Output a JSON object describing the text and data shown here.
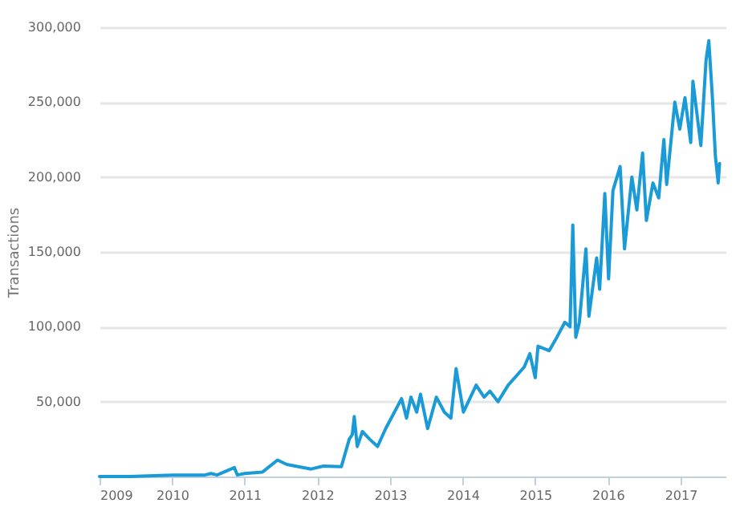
{
  "chart_data": {
    "type": "line",
    "ylabel": "Transactions",
    "xlim": [
      "2009-01-01",
      "2017-08-15"
    ],
    "ylim": [
      0,
      300000
    ],
    "xticks": [
      "2009",
      "2010",
      "2011",
      "2012",
      "2013",
      "2014",
      "2015",
      "2016",
      "2017"
    ],
    "yticks": [
      {
        "value": 50000,
        "label": "50,000"
      },
      {
        "value": 100000,
        "label": "100,000"
      },
      {
        "value": 150000,
        "label": "150,000"
      },
      {
        "value": 200000,
        "label": "200,000"
      },
      {
        "value": 250000,
        "label": "250,000"
      },
      {
        "value": 300000,
        "label": "300,000"
      }
    ],
    "grid": "y",
    "marker": "none",
    "line_style": "solid",
    "x": [
      "2009-01-01",
      "2009-06-01",
      "2010-01-01",
      "2010-06-15",
      "2010-07-15",
      "2010-08-15",
      "2010-11-10",
      "2010-11-25",
      "2011-01-01",
      "2011-04-01",
      "2011-06-15",
      "2011-08-01",
      "2011-12-01",
      "2012-02-01",
      "2012-05-01",
      "2012-06-10",
      "2012-06-25",
      "2012-07-05",
      "2012-07-20",
      "2012-08-15",
      "2012-09-20",
      "2012-10-30",
      "2012-12-10",
      "2013-02-28",
      "2013-03-25",
      "2013-04-16",
      "2013-05-15",
      "2013-06-03",
      "2013-07-09",
      "2013-08-22",
      "2013-10-01",
      "2013-11-03",
      "2013-11-29",
      "2014-01-05",
      "2014-03-10",
      "2014-04-19",
      "2014-05-18",
      "2014-06-28",
      "2014-08-18",
      "2014-11-06",
      "2014-12-05",
      "2015-01-01",
      "2015-01-15",
      "2015-03-12",
      "2015-04-20",
      "2015-05-30",
      "2015-06-25",
      "2015-07-09",
      "2015-07-24",
      "2015-08-11",
      "2015-09-13",
      "2015-09-28",
      "2015-11-06",
      "2015-11-21",
      "2015-12-17",
      "2016-01-05",
      "2016-01-27",
      "2016-03-03",
      "2016-03-25",
      "2016-05-01",
      "2016-05-26",
      "2016-06-24",
      "2016-07-13",
      "2016-08-15",
      "2016-09-13",
      "2016-10-09",
      "2016-10-23",
      "2016-12-03",
      "2016-12-28",
      "2017-01-23",
      "2017-02-21",
      "2017-03-04",
      "2017-04-13",
      "2017-05-09",
      "2017-05-23",
      "2017-06-10",
      "2017-06-25",
      "2017-07-09",
      "2017-07-16"
    ],
    "series": [
      {
        "color": "#1a9bd7",
        "values": [
          0,
          0,
          1000,
          1000,
          2000,
          1000,
          6000,
          1000,
          2000,
          3000,
          11000,
          8000,
          5000,
          7000,
          6500,
          25000,
          28000,
          40000,
          20000,
          30000,
          25000,
          20000,
          32000,
          52000,
          39000,
          53000,
          43000,
          55000,
          32000,
          53000,
          43000,
          39000,
          72000,
          43000,
          61000,
          53000,
          57000,
          50000,
          61000,
          73000,
          82000,
          66000,
          87000,
          84000,
          93000,
          103000,
          100000,
          168000,
          93000,
          103000,
          152000,
          107000,
          146000,
          125000,
          189000,
          132000,
          191000,
          207000,
          152000,
          200000,
          178000,
          216000,
          171000,
          196000,
          186000,
          225000,
          195000,
          250000,
          232000,
          253000,
          223000,
          264000,
          221000,
          278000,
          291000,
          253000,
          214000,
          196000,
          209000
        ]
      }
    ]
  }
}
